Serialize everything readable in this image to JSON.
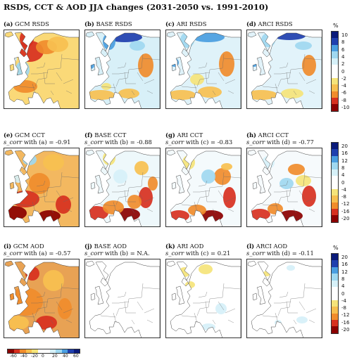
{
  "title": "RSDS, CCT & AOD JJA changes (2031-2050 vs. 1991-2010)",
  "rows": [
    {
      "panels": [
        {
          "id": "(a)",
          "name": "GCM RSDS",
          "sub_pre": "",
          "sub_corr": "",
          "sub_post": "",
          "pattern": "gcm_rsds"
        },
        {
          "id": "(b)",
          "name": "BASE RSDS",
          "sub_pre": "",
          "sub_corr": "",
          "sub_post": "",
          "pattern": "base_rsds"
        },
        {
          "id": "(c)",
          "name": "ARI RSDS",
          "sub_pre": "",
          "sub_corr": "",
          "sub_post": "",
          "pattern": "ari_rsds"
        },
        {
          "id": "(d)",
          "name": "ARCI RSDS",
          "sub_pre": "",
          "sub_corr": "",
          "sub_post": "",
          "pattern": "arci_rsds"
        }
      ],
      "colorbar": {
        "unit": "%",
        "ticks": [
          "10",
          "8",
          "6",
          "4",
          "2",
          "0",
          "-2",
          "-4",
          "-6",
          "-8",
          "-10"
        ]
      }
    },
    {
      "panels": [
        {
          "id": "(e)",
          "name": "GCM CCT",
          "sub_pre": "",
          "sub_corr": "s_corr",
          "sub_post": " with (a) = -0.91",
          "pattern": "gcm_cct"
        },
        {
          "id": "(f)",
          "name": "BASE CCT",
          "sub_pre": "",
          "sub_corr": "s_corr",
          "sub_post": " with (b) = -0.88",
          "pattern": "base_cct"
        },
        {
          "id": "(g)",
          "name": "ARI CCT",
          "sub_pre": "",
          "sub_corr": "s_corr",
          "sub_post": " with (c) = -0.83",
          "pattern": "ari_cct"
        },
        {
          "id": "(h)",
          "name": "ARCI CCT",
          "sub_pre": "",
          "sub_corr": "s_corr",
          "sub_post": " with (d) = -0.77",
          "pattern": "arci_cct"
        }
      ],
      "colorbar": {
        "unit": "",
        "ticks": [
          "20",
          "16",
          "12",
          "8",
          "4",
          "0",
          "-4",
          "-8",
          "-12",
          "-16",
          "-20"
        ]
      }
    },
    {
      "panels": [
        {
          "id": "(i)",
          "name": "GCM AOD",
          "sub_pre": "",
          "sub_corr": "s_corr",
          "sub_post": " with (a) = -0.57",
          "pattern": "gcm_aod"
        },
        {
          "id": "(j)",
          "name": "BASE AOD",
          "sub_pre": "",
          "sub_corr": "s_corr",
          "sub_post": " with (b) = N.A.",
          "pattern": "base_aod"
        },
        {
          "id": "(k)",
          "name": "ARI AOD",
          "sub_pre": "",
          "sub_corr": "s_corr",
          "sub_post": " with (c) = 0.21",
          "pattern": "ari_aod"
        },
        {
          "id": "(l)",
          "name": "ARCI AOD",
          "sub_pre": "",
          "sub_corr": "s_corr",
          "sub_post": " with (d) = -0.11",
          "pattern": "arci_aod"
        }
      ],
      "colorbar": {
        "unit": "%",
        "ticks": [
          "20",
          "16",
          "12",
          "8",
          "4",
          "0",
          "-4",
          "-8",
          "-12",
          "-16",
          "-20"
        ]
      }
    }
  ],
  "bottom_colorbar": {
    "ticks": [
      "-60",
      "-40",
      "-20",
      "0",
      "20",
      "40",
      "60"
    ]
  },
  "colors": {
    "dark_red": "#8b0000",
    "red": "#d7301f",
    "orange": "#f08c2c",
    "light_orange": "#f7c050",
    "yellow": "#f5e47a",
    "white": "#ffffff",
    "pale_blue": "#d6f0f8",
    "light_blue": "#9fd8f0",
    "blue": "#4a9ee0",
    "dark_blue": "#1f3fae",
    "navy": "#0a1a7a"
  }
}
